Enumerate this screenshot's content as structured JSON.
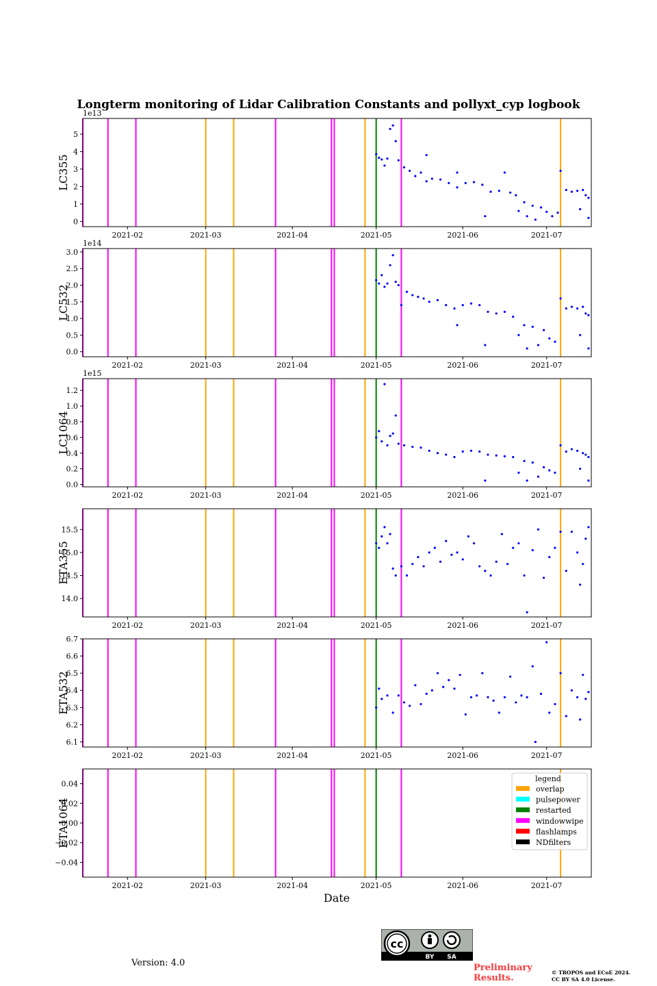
{
  "title": "Longterm monitoring of Lidar Calibration Constants and pollyxt_cyp logbook",
  "xlabel": "Date",
  "version": "Version: 4.0",
  "preliminary": "Preliminary Results.",
  "copyright_line1": "© TROPOS and ECoE 2024.",
  "copyright_line2": "CC BY SA 4.0 License.",
  "license_badge": {
    "by": "BY",
    "sa": "SA",
    "cc": "cc"
  },
  "colors": {
    "overlap": "#ffa500",
    "pulsepower": "#00ffff",
    "restarted": "#008000",
    "windowwipe": "#ff00ff",
    "flashlamps": "#ff0000",
    "NDfilters": "#000000",
    "points": "#0000ff"
  },
  "chart_data": {
    "type": "scatter",
    "x_range": [
      "2021-01-16",
      "2021-07-17"
    ],
    "x_ticks": [
      "2021-02",
      "2021-03",
      "2021-04",
      "2021-05",
      "2021-06",
      "2021-07"
    ],
    "legend": {
      "title": "legend",
      "placement": "right",
      "entries": [
        "overlap",
        "pulsepower",
        "restarted",
        "windowwipe",
        "flashlamps",
        "NDfilters"
      ]
    },
    "events": [
      {
        "date": "2021-01-16",
        "type": "windowwipe"
      },
      {
        "date": "2021-01-25",
        "type": "windowwipe"
      },
      {
        "date": "2021-02-04",
        "type": "windowwipe"
      },
      {
        "date": "2021-03-01",
        "type": "overlap"
      },
      {
        "date": "2021-03-11",
        "type": "overlap"
      },
      {
        "date": "2021-03-26",
        "type": "windowwipe"
      },
      {
        "date": "2021-04-15",
        "type": "windowwipe"
      },
      {
        "date": "2021-04-16",
        "type": "windowwipe"
      },
      {
        "date": "2021-04-27",
        "type": "overlap"
      },
      {
        "date": "2021-05-01",
        "type": "restarted"
      },
      {
        "date": "2021-05-10",
        "type": "windowwipe"
      },
      {
        "date": "2021-07-06",
        "type": "overlap"
      }
    ],
    "panels": [
      {
        "ylabel": "LC355",
        "ylim": [
          -0.3,
          5.9
        ],
        "multiplier": "1e13",
        "yticks": [
          "0",
          "1",
          "2",
          "3",
          "4",
          "5"
        ],
        "points": [
          [
            "2021-05-01",
            3.85
          ],
          [
            "2021-05-02",
            3.65
          ],
          [
            "2021-05-03",
            3.55
          ],
          [
            "2021-05-04",
            3.2
          ],
          [
            "2021-05-05",
            3.6
          ],
          [
            "2021-05-06",
            5.3
          ],
          [
            "2021-05-07",
            5.5
          ],
          [
            "2021-05-08",
            4.6
          ],
          [
            "2021-05-09",
            3.5
          ],
          [
            "2021-05-11",
            3.1
          ],
          [
            "2021-05-13",
            2.9
          ],
          [
            "2021-05-15",
            2.6
          ],
          [
            "2021-05-17",
            2.8
          ],
          [
            "2021-05-19",
            2.3
          ],
          [
            "2021-05-19",
            3.8
          ],
          [
            "2021-05-21",
            2.45
          ],
          [
            "2021-05-24",
            2.4
          ],
          [
            "2021-05-27",
            2.2
          ],
          [
            "2021-05-30",
            1.95
          ],
          [
            "2021-05-30",
            2.8
          ],
          [
            "2021-06-02",
            2.2
          ],
          [
            "2021-06-05",
            2.25
          ],
          [
            "2021-06-08",
            2.1
          ],
          [
            "2021-06-09",
            0.3
          ],
          [
            "2021-06-11",
            1.7
          ],
          [
            "2021-06-14",
            1.75
          ],
          [
            "2021-06-16",
            2.8
          ],
          [
            "2021-06-18",
            1.65
          ],
          [
            "2021-06-20",
            1.5
          ],
          [
            "2021-06-21",
            0.6
          ],
          [
            "2021-06-23",
            1.1
          ],
          [
            "2021-06-24",
            0.3
          ],
          [
            "2021-06-26",
            0.9
          ],
          [
            "2021-06-27",
            0.1
          ],
          [
            "2021-06-29",
            0.8
          ],
          [
            "2021-07-01",
            0.55
          ],
          [
            "2021-07-03",
            0.3
          ],
          [
            "2021-07-05",
            0.5
          ],
          [
            "2021-07-06",
            2.9
          ],
          [
            "2021-07-08",
            1.8
          ],
          [
            "2021-07-10",
            1.7
          ],
          [
            "2021-07-12",
            1.75
          ],
          [
            "2021-07-13",
            0.7
          ],
          [
            "2021-07-14",
            1.8
          ],
          [
            "2021-07-15",
            1.5
          ],
          [
            "2021-07-16",
            1.35
          ],
          [
            "2021-07-16",
            0.2
          ]
        ]
      },
      {
        "ylabel": "LC532",
        "ylim": [
          -0.15,
          3.1
        ],
        "multiplier": "1e14",
        "yticks": [
          "0.0",
          "0.5",
          "1.0",
          "1.5",
          "2.0",
          "2.5",
          "3.0"
        ],
        "points": [
          [
            "2021-05-01",
            2.15
          ],
          [
            "2021-05-02",
            2.05
          ],
          [
            "2021-05-03",
            2.3
          ],
          [
            "2021-05-04",
            1.95
          ],
          [
            "2021-05-05",
            2.05
          ],
          [
            "2021-05-06",
            2.6
          ],
          [
            "2021-05-07",
            2.9
          ],
          [
            "2021-05-08",
            2.1
          ],
          [
            "2021-05-09",
            2.0
          ],
          [
            "2021-05-10",
            1.4
          ],
          [
            "2021-05-12",
            1.8
          ],
          [
            "2021-05-14",
            1.7
          ],
          [
            "2021-05-16",
            1.65
          ],
          [
            "2021-05-18",
            1.6
          ],
          [
            "2021-05-20",
            1.5
          ],
          [
            "2021-05-23",
            1.55
          ],
          [
            "2021-05-26",
            1.4
          ],
          [
            "2021-05-29",
            1.3
          ],
          [
            "2021-05-30",
            0.8
          ],
          [
            "2021-06-01",
            1.4
          ],
          [
            "2021-06-04",
            1.45
          ],
          [
            "2021-06-07",
            1.4
          ],
          [
            "2021-06-09",
            0.2
          ],
          [
            "2021-06-10",
            1.2
          ],
          [
            "2021-06-13",
            1.15
          ],
          [
            "2021-06-16",
            1.2
          ],
          [
            "2021-06-19",
            1.05
          ],
          [
            "2021-06-21",
            0.5
          ],
          [
            "2021-06-23",
            0.8
          ],
          [
            "2021-06-24",
            0.1
          ],
          [
            "2021-06-26",
            0.75
          ],
          [
            "2021-06-28",
            0.2
          ],
          [
            "2021-06-30",
            0.65
          ],
          [
            "2021-07-02",
            0.4
          ],
          [
            "2021-07-04",
            0.3
          ],
          [
            "2021-07-06",
            1.6
          ],
          [
            "2021-07-08",
            1.3
          ],
          [
            "2021-07-10",
            1.35
          ],
          [
            "2021-07-12",
            1.3
          ],
          [
            "2021-07-13",
            0.5
          ],
          [
            "2021-07-14",
            1.35
          ],
          [
            "2021-07-15",
            1.15
          ],
          [
            "2021-07-16",
            1.1
          ],
          [
            "2021-07-16",
            0.1
          ]
        ]
      },
      {
        "ylabel": "LC1064",
        "ylim": [
          -0.03,
          1.35
        ],
        "multiplier": "1e15",
        "yticks": [
          "0.0",
          "0.2",
          "0.4",
          "0.6",
          "0.8",
          "1.0",
          "1.2"
        ],
        "points": [
          [
            "2021-05-01",
            0.6
          ],
          [
            "2021-05-02",
            0.68
          ],
          [
            "2021-05-03",
            0.55
          ],
          [
            "2021-05-04",
            1.28
          ],
          [
            "2021-05-05",
            0.5
          ],
          [
            "2021-05-06",
            0.62
          ],
          [
            "2021-05-07",
            0.65
          ],
          [
            "2021-05-08",
            0.88
          ],
          [
            "2021-05-09",
            0.52
          ],
          [
            "2021-05-11",
            0.5
          ],
          [
            "2021-05-14",
            0.48
          ],
          [
            "2021-05-17",
            0.47
          ],
          [
            "2021-05-20",
            0.43
          ],
          [
            "2021-05-23",
            0.4
          ],
          [
            "2021-05-26",
            0.38
          ],
          [
            "2021-05-29",
            0.35
          ],
          [
            "2021-06-01",
            0.42
          ],
          [
            "2021-06-04",
            0.43
          ],
          [
            "2021-06-07",
            0.42
          ],
          [
            "2021-06-09",
            0.05
          ],
          [
            "2021-06-10",
            0.38
          ],
          [
            "2021-06-13",
            0.37
          ],
          [
            "2021-06-16",
            0.36
          ],
          [
            "2021-06-19",
            0.35
          ],
          [
            "2021-06-21",
            0.15
          ],
          [
            "2021-06-23",
            0.3
          ],
          [
            "2021-06-24",
            0.05
          ],
          [
            "2021-06-26",
            0.28
          ],
          [
            "2021-06-28",
            0.1
          ],
          [
            "2021-06-30",
            0.22
          ],
          [
            "2021-07-02",
            0.18
          ],
          [
            "2021-07-04",
            0.15
          ],
          [
            "2021-07-06",
            0.5
          ],
          [
            "2021-07-08",
            0.42
          ],
          [
            "2021-07-10",
            0.45
          ],
          [
            "2021-07-12",
            0.43
          ],
          [
            "2021-07-13",
            0.2
          ],
          [
            "2021-07-14",
            0.4
          ],
          [
            "2021-07-15",
            0.38
          ],
          [
            "2021-07-16",
            0.35
          ],
          [
            "2021-07-16",
            0.05
          ]
        ]
      },
      {
        "ylabel": "ETA355",
        "ylim": [
          13.6,
          15.95
        ],
        "multiplier": "",
        "yticks": [
          "14.0",
          "14.5",
          "15.0",
          "15.5"
        ],
        "points": [
          [
            "2021-05-01",
            15.2
          ],
          [
            "2021-05-02",
            15.1
          ],
          [
            "2021-05-03",
            15.35
          ],
          [
            "2021-05-04",
            15.55
          ],
          [
            "2021-05-05",
            15.2
          ],
          [
            "2021-05-06",
            15.4
          ],
          [
            "2021-05-07",
            14.65
          ],
          [
            "2021-05-08",
            14.5
          ],
          [
            "2021-05-10",
            14.7
          ],
          [
            "2021-05-12",
            14.5
          ],
          [
            "2021-05-14",
            14.75
          ],
          [
            "2021-05-16",
            14.9
          ],
          [
            "2021-05-18",
            14.7
          ],
          [
            "2021-05-20",
            15.0
          ],
          [
            "2021-05-22",
            15.1
          ],
          [
            "2021-05-24",
            14.8
          ],
          [
            "2021-05-26",
            15.25
          ],
          [
            "2021-05-28",
            14.95
          ],
          [
            "2021-05-30",
            15.0
          ],
          [
            "2021-06-01",
            14.85
          ],
          [
            "2021-06-03",
            15.35
          ],
          [
            "2021-06-05",
            15.2
          ],
          [
            "2021-06-07",
            14.7
          ],
          [
            "2021-06-09",
            14.6
          ],
          [
            "2021-06-11",
            14.5
          ],
          [
            "2021-06-13",
            14.8
          ],
          [
            "2021-06-15",
            15.4
          ],
          [
            "2021-06-17",
            14.75
          ],
          [
            "2021-06-19",
            15.1
          ],
          [
            "2021-06-21",
            15.2
          ],
          [
            "2021-06-23",
            14.5
          ],
          [
            "2021-06-24",
            13.7
          ],
          [
            "2021-06-26",
            15.05
          ],
          [
            "2021-06-28",
            15.5
          ],
          [
            "2021-06-30",
            14.45
          ],
          [
            "2021-07-02",
            14.9
          ],
          [
            "2021-07-04",
            15.1
          ],
          [
            "2021-07-06",
            15.45
          ],
          [
            "2021-07-08",
            14.6
          ],
          [
            "2021-07-10",
            15.45
          ],
          [
            "2021-07-12",
            15.0
          ],
          [
            "2021-07-13",
            14.3
          ],
          [
            "2021-07-14",
            14.75
          ],
          [
            "2021-07-15",
            15.3
          ],
          [
            "2021-07-16",
            15.55
          ]
        ]
      },
      {
        "ylabel": "ETA532",
        "ylim": [
          6.07,
          6.7
        ],
        "multiplier": "",
        "yticks": [
          "6.1",
          "6.2",
          "6.3",
          "6.4",
          "6.5",
          "6.6",
          "6.7"
        ],
        "points": [
          [
            "2021-05-01",
            6.3
          ],
          [
            "2021-05-02",
            6.41
          ],
          [
            "2021-05-03",
            6.35
          ],
          [
            "2021-05-05",
            6.37
          ],
          [
            "2021-05-07",
            6.27
          ],
          [
            "2021-05-09",
            6.37
          ],
          [
            "2021-05-11",
            6.33
          ],
          [
            "2021-05-13",
            6.31
          ],
          [
            "2021-05-15",
            6.43
          ],
          [
            "2021-05-17",
            6.32
          ],
          [
            "2021-05-19",
            6.38
          ],
          [
            "2021-05-21",
            6.4
          ],
          [
            "2021-05-23",
            6.5
          ],
          [
            "2021-05-25",
            6.42
          ],
          [
            "2021-05-27",
            6.46
          ],
          [
            "2021-05-29",
            6.41
          ],
          [
            "2021-05-31",
            6.49
          ],
          [
            "2021-06-02",
            6.26
          ],
          [
            "2021-06-04",
            6.36
          ],
          [
            "2021-06-06",
            6.37
          ],
          [
            "2021-06-08",
            6.5
          ],
          [
            "2021-06-10",
            6.36
          ],
          [
            "2021-06-12",
            6.34
          ],
          [
            "2021-06-14",
            6.27
          ],
          [
            "2021-06-16",
            6.36
          ],
          [
            "2021-06-18",
            6.48
          ],
          [
            "2021-06-20",
            6.33
          ],
          [
            "2021-06-22",
            6.37
          ],
          [
            "2021-06-24",
            6.36
          ],
          [
            "2021-06-26",
            6.54
          ],
          [
            "2021-06-27",
            6.1
          ],
          [
            "2021-06-29",
            6.38
          ],
          [
            "2021-07-01",
            6.68
          ],
          [
            "2021-07-02",
            6.27
          ],
          [
            "2021-07-04",
            6.32
          ],
          [
            "2021-07-06",
            6.5
          ],
          [
            "2021-07-08",
            6.25
          ],
          [
            "2021-07-10",
            6.4
          ],
          [
            "2021-07-12",
            6.36
          ],
          [
            "2021-07-13",
            6.23
          ],
          [
            "2021-07-14",
            6.49
          ],
          [
            "2021-07-15",
            6.35
          ],
          [
            "2021-07-16",
            6.39
          ]
        ]
      },
      {
        "ylabel": "ETA1064",
        "ylim": [
          -0.055,
          0.055
        ],
        "multiplier": "",
        "yticks": [
          "−0.04",
          "−0.02",
          "0.00",
          "0.02",
          "0.04"
        ],
        "points": []
      }
    ]
  }
}
